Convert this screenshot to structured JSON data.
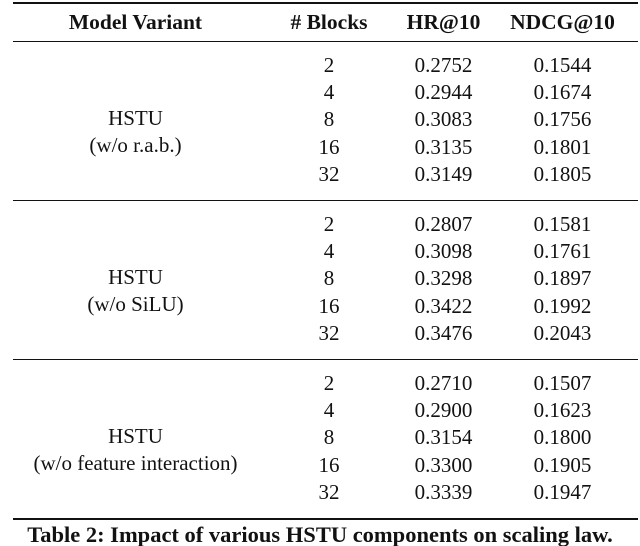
{
  "table": {
    "headers": [
      "Model Variant",
      "# Blocks",
      "HR@10",
      "NDCG@10"
    ],
    "groups": [
      {
        "variant": "HSTU",
        "variant_note": "(w/o r.a.b.)",
        "rows": [
          [
            "2",
            "0.2752",
            "0.1544"
          ],
          [
            "4",
            "0.2944",
            "0.1674"
          ],
          [
            "8",
            "0.3083",
            "0.1756"
          ],
          [
            "16",
            "0.3135",
            "0.1801"
          ],
          [
            "32",
            "0.3149",
            "0.1805"
          ]
        ]
      },
      {
        "variant": "HSTU",
        "variant_note": "(w/o SiLU)",
        "rows": [
          [
            "2",
            "0.2807",
            "0.1581"
          ],
          [
            "4",
            "0.3098",
            "0.1761"
          ],
          [
            "8",
            "0.3298",
            "0.1897"
          ],
          [
            "16",
            "0.3422",
            "0.1992"
          ],
          [
            "32",
            "0.3476",
            "0.2043"
          ]
        ]
      },
      {
        "variant": "HSTU",
        "variant_note": "(w/o feature interaction)",
        "rows": [
          [
            "2",
            "0.2710",
            "0.1507"
          ],
          [
            "4",
            "0.2900",
            "0.1623"
          ],
          [
            "8",
            "0.3154",
            "0.1800"
          ],
          [
            "16",
            "0.3300",
            "0.1905"
          ],
          [
            "32",
            "0.3339",
            "0.1947"
          ]
        ]
      }
    ],
    "caption": "Table 2: Impact of various HSTU components on scaling law."
  },
  "chart_data": {
    "type": "table",
    "title": "Table 2: Impact of various HSTU components on scaling law.",
    "columns": [
      "Model Variant",
      "# Blocks",
      "HR@10",
      "NDCG@10"
    ],
    "rows": [
      [
        "HSTU (w/o r.a.b.)",
        2,
        0.2752,
        0.1544
      ],
      [
        "HSTU (w/o r.a.b.)",
        4,
        0.2944,
        0.1674
      ],
      [
        "HSTU (w/o r.a.b.)",
        8,
        0.3083,
        0.1756
      ],
      [
        "HSTU (w/o r.a.b.)",
        16,
        0.3135,
        0.1801
      ],
      [
        "HSTU (w/o r.a.b.)",
        32,
        0.3149,
        0.1805
      ],
      [
        "HSTU (w/o SiLU)",
        2,
        0.2807,
        0.1581
      ],
      [
        "HSTU (w/o SiLU)",
        4,
        0.3098,
        0.1761
      ],
      [
        "HSTU (w/o SiLU)",
        8,
        0.3298,
        0.1897
      ],
      [
        "HSTU (w/o SiLU)",
        16,
        0.3422,
        0.1992
      ],
      [
        "HSTU (w/o SiLU)",
        32,
        0.3476,
        0.2043
      ],
      [
        "HSTU (w/o feature interaction)",
        2,
        0.271,
        0.1507
      ],
      [
        "HSTU (w/o feature interaction)",
        4,
        0.29,
        0.1623
      ],
      [
        "HSTU (w/o feature interaction)",
        8,
        0.3154,
        0.18
      ],
      [
        "HSTU (w/o feature interaction)",
        16,
        0.33,
        0.1905
      ],
      [
        "HSTU (w/o feature interaction)",
        32,
        0.3339,
        0.1947
      ]
    ]
  }
}
